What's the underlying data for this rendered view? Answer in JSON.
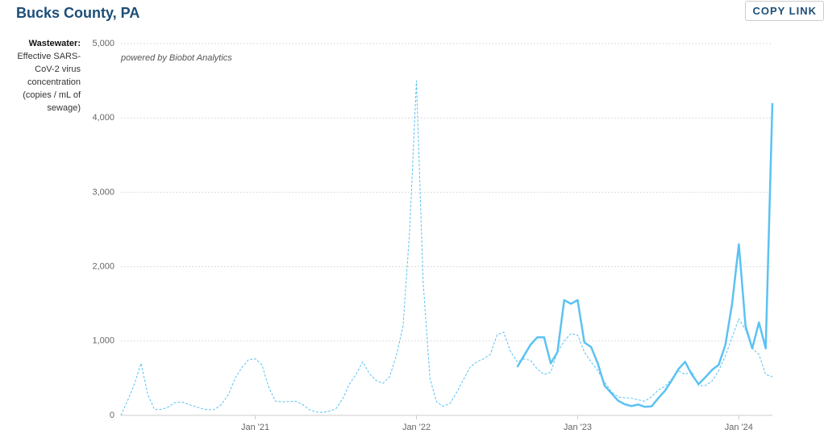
{
  "chart_data": {
    "type": "line",
    "title": "Bucks County, PA",
    "button": "COPY LINK",
    "y_label_head": "Wastewater:",
    "y_label": "Effective SARS-CoV-2 virus concentration (copies / mL of sewage)",
    "annotation": "powered by Biobot Analytics",
    "categories": [
      null,
      null,
      null,
      null,
      null,
      null,
      null,
      null,
      null,
      null,
      null,
      null,
      null,
      null,
      null,
      null,
      null,
      null,
      null,
      null,
      "Jan '21",
      null,
      null,
      null,
      null,
      null,
      null,
      null,
      null,
      null,
      null,
      null,
      null,
      null,
      null,
      null,
      null,
      null,
      null,
      null,
      null,
      null,
      null,
      null,
      "Jan '22",
      null,
      null,
      null,
      null,
      null,
      null,
      null,
      null,
      null,
      null,
      null,
      null,
      null,
      null,
      null,
      null,
      null,
      null,
      null,
      null,
      null,
      null,
      null,
      "Jan '23",
      null,
      null,
      null,
      null,
      null,
      null,
      null,
      null,
      null,
      null,
      null,
      null,
      null,
      null,
      null,
      null,
      null,
      null,
      null,
      null,
      null,
      null,
      null,
      "Jan '24",
      null,
      null,
      null,
      null,
      null
    ],
    "series": [
      {
        "color": "#5bc2f2",
        "dashed": true,
        "values": [
          0,
          200,
          420,
          700,
          280,
          80,
          80,
          110,
          170,
          180,
          150,
          120,
          90,
          75,
          80,
          150,
          280,
          500,
          640,
          750,
          760,
          680,
          380,
          190,
          180,
          185,
          190,
          150,
          80,
          45,
          40,
          55,
          90,
          220,
          420,
          550,
          720,
          560,
          470,
          430,
          520,
          800,
          1200,
          2500,
          4500,
          1800,
          500,
          180,
          120,
          160,
          310,
          480,
          650,
          720,
          760,
          820,
          1080,
          1120,
          860,
          720,
          760,
          740,
          620,
          550,
          580,
          850,
          1000,
          1100,
          1080,
          850,
          720,
          600,
          450,
          320,
          250,
          235,
          230,
          210,
          190,
          250,
          340,
          390,
          490,
          600,
          550,
          590,
          400,
          400,
          460,
          600,
          800,
          1050,
          1300,
          1150,
          900,
          820,
          550,
          520
        ]
      },
      {
        "color": "#5bc2f2",
        "dashed": false,
        "values": [
          null,
          null,
          null,
          null,
          null,
          null,
          null,
          null,
          null,
          null,
          null,
          null,
          null,
          null,
          null,
          null,
          null,
          null,
          null,
          null,
          null,
          null,
          null,
          null,
          null,
          null,
          null,
          null,
          null,
          null,
          null,
          null,
          null,
          null,
          null,
          null,
          null,
          null,
          null,
          null,
          null,
          null,
          null,
          null,
          null,
          null,
          null,
          null,
          null,
          null,
          null,
          null,
          null,
          null,
          null,
          null,
          null,
          null,
          null,
          650,
          800,
          950,
          1050,
          1050,
          700,
          850,
          1550,
          1500,
          1550,
          980,
          920,
          700,
          400,
          300,
          200,
          150,
          125,
          145,
          115,
          120,
          230,
          330,
          470,
          620,
          720,
          550,
          420,
          510,
          610,
          680,
          950,
          1500,
          2300,
          1200,
          900,
          1250,
          900,
          4200
        ]
      }
    ],
    "ylim": [
      0,
      5000
    ],
    "yticks": [
      0,
      {
        "value": 1000,
        "label": "1,000"
      },
      {
        "value": 2000,
        "label": "2,000"
      },
      {
        "value": 3000,
        "label": "3,000"
      },
      {
        "value": 4000,
        "label": "4,000"
      },
      {
        "value": 5000,
        "label": "5,000"
      }
    ],
    "grid": true
  }
}
